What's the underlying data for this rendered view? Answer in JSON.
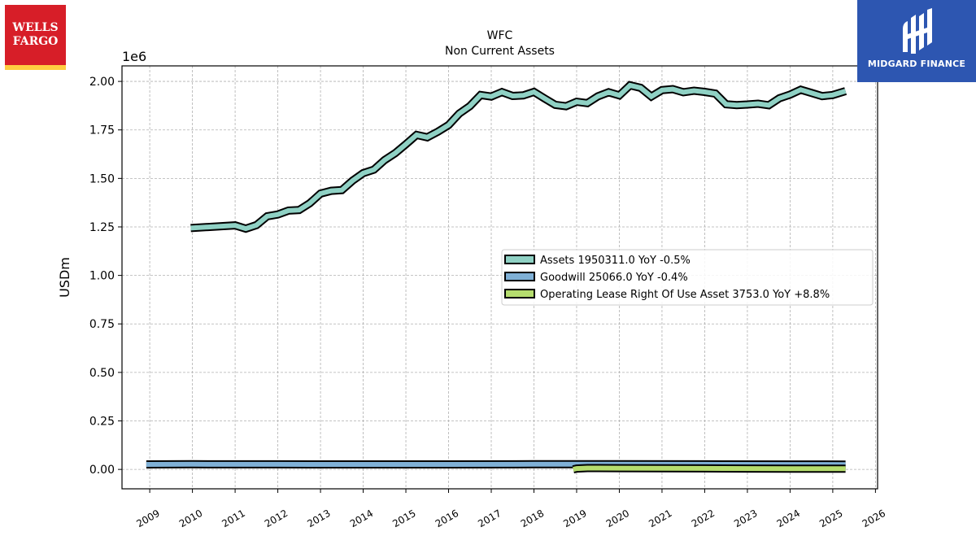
{
  "logos": {
    "left": {
      "line1": "WELLS",
      "line2": "FARGO",
      "red": "#d71e28",
      "gold": "#ffcd41"
    },
    "right": {
      "name": "MIDGARD FINANCE",
      "bg": "#2d56b1"
    }
  },
  "chart_data": {
    "type": "line",
    "title": "WFC",
    "subtitle": "Non Current  Assets",
    "ylabel": "USDm",
    "scale_label": "1e6",
    "ylim": [
      -0.1,
      2.08
    ],
    "yticks": [
      0.0,
      0.25,
      0.5,
      0.75,
      1.0,
      1.25,
      1.5,
      1.75,
      2.0
    ],
    "ytick_labels": [
      "0.00",
      "0.25",
      "0.50",
      "0.75",
      "1.00",
      "1.25",
      "1.50",
      "1.75",
      "2.00"
    ],
    "xlim": [
      2008.35,
      2026.05
    ],
    "xticks": [
      2009,
      2010,
      2011,
      2012,
      2013,
      2014,
      2015,
      2016,
      2017,
      2018,
      2019,
      2020,
      2021,
      2022,
      2023,
      2024,
      2025,
      2026
    ],
    "xtick_labels": [
      "2009",
      "2010",
      "2011",
      "2012",
      "2013",
      "2014",
      "2015",
      "2016",
      "2017",
      "2018",
      "2019",
      "2020",
      "2021",
      "2022",
      "2023",
      "2024",
      "2025",
      "2026"
    ],
    "grid": true,
    "legend_position": "center-right",
    "series": [
      {
        "name": "Assets",
        "legend": "Assets  1950311.0 YoY -0.5%",
        "color": "#8fd1c4",
        "x": [
          2009.96,
          2011.0,
          2011.25,
          2011.5,
          2011.75,
          2012.0,
          2012.25,
          2012.5,
          2012.75,
          2013.0,
          2013.25,
          2013.5,
          2013.75,
          2014.0,
          2014.25,
          2014.5,
          2014.75,
          2015.0,
          2015.25,
          2015.5,
          2015.75,
          2016.0,
          2016.25,
          2016.5,
          2016.75,
          2017.0,
          2017.25,
          2017.5,
          2017.75,
          2018.0,
          2018.25,
          2018.5,
          2018.75,
          2019.0,
          2019.25,
          2019.5,
          2019.75,
          2020.0,
          2020.25,
          2020.5,
          2020.75,
          2021.0,
          2021.25,
          2021.5,
          2021.75,
          2022.0,
          2022.25,
          2022.5,
          2022.75,
          2023.0,
          2023.25,
          2023.5,
          2023.75,
          2024.0,
          2024.25,
          2024.5,
          2024.75,
          2025.0,
          2025.3
        ],
        "values": [
          1.244,
          1.258,
          1.241,
          1.259,
          1.305,
          1.314,
          1.334,
          1.337,
          1.372,
          1.422,
          1.436,
          1.44,
          1.488,
          1.527,
          1.545,
          1.594,
          1.63,
          1.676,
          1.724,
          1.712,
          1.741,
          1.775,
          1.834,
          1.873,
          1.93,
          1.922,
          1.945,
          1.925,
          1.928,
          1.946,
          1.912,
          1.879,
          1.872,
          1.895,
          1.888,
          1.923,
          1.944,
          1.928,
          1.98,
          1.967,
          1.922,
          1.955,
          1.96,
          1.944,
          1.952,
          1.946,
          1.937,
          1.882,
          1.878,
          1.881,
          1.885,
          1.877,
          1.913,
          1.932,
          1.957,
          1.941,
          1.924,
          1.93,
          1.95
        ]
      },
      {
        "name": "Goodwill",
        "legend": "Goodwill  25066.0 YoY -0.4%",
        "color": "#7fb0d6",
        "x": [
          2008.92,
          2010.0,
          2012.0,
          2014.0,
          2016.0,
          2018.0,
          2020.0,
          2022.0,
          2024.0,
          2025.3
        ],
        "values": [
          0.0256,
          0.0265,
          0.0263,
          0.0258,
          0.0258,
          0.0266,
          0.0264,
          0.0261,
          0.0252,
          0.0251
        ]
      },
      {
        "name": "Operating Lease Right Of Use Asset",
        "legend": "Operating Lease Right Of Use Asset  3753.0 YoY +8.8%",
        "color": "#b5dd6e",
        "x": [
          2018.92,
          2019.0,
          2019.25,
          2019.5,
          2020.0,
          2021.0,
          2022.0,
          2023.0,
          2024.0,
          2025.3
        ],
        "values": [
          0.0,
          0.0044,
          0.0068,
          0.0068,
          0.0064,
          0.0059,
          0.0054,
          0.0045,
          0.004,
          0.0038
        ]
      }
    ]
  }
}
